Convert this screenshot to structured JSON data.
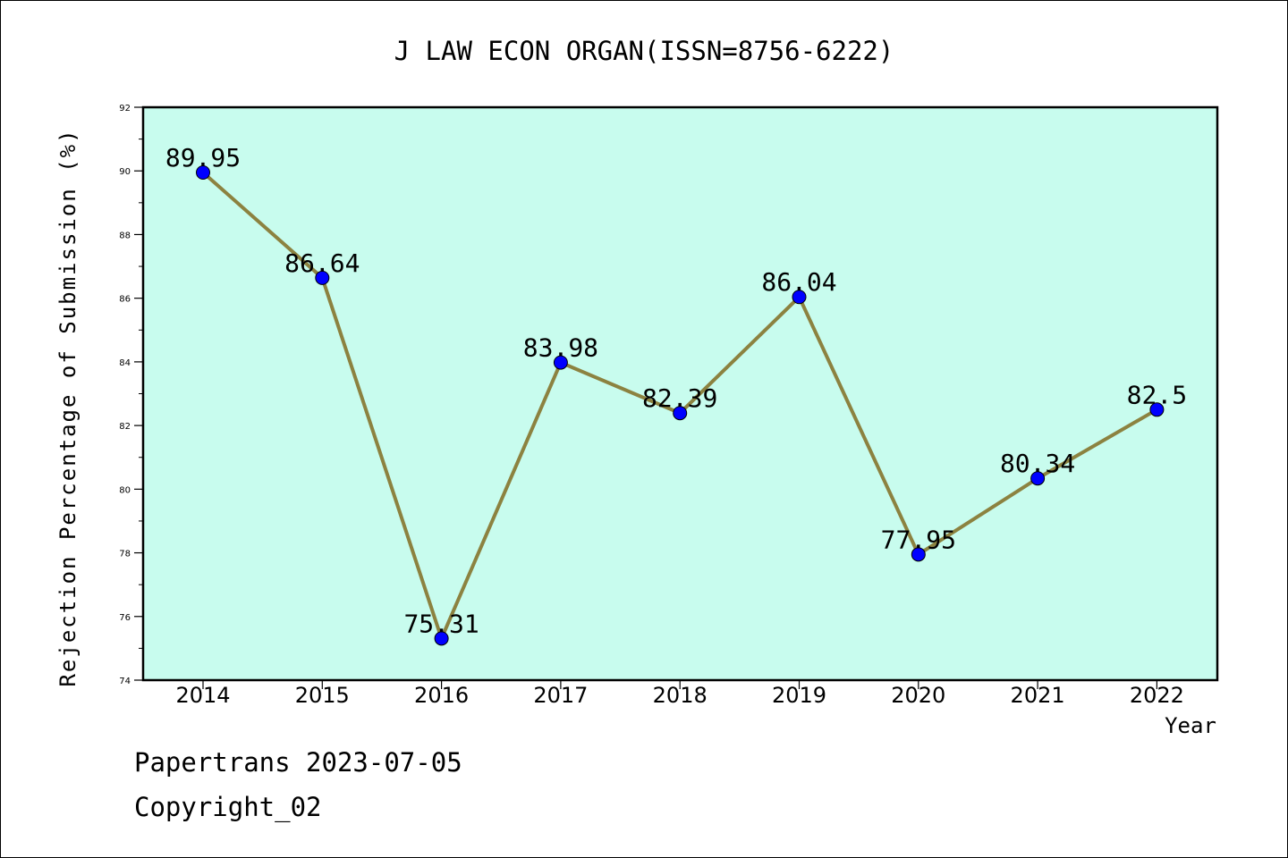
{
  "chart_data": {
    "type": "line",
    "title": "J LAW ECON ORGAN(ISSN=8756-6222)",
    "xlabel": "Year",
    "ylabel": "Rejection Percentage of Submission (%)",
    "categories": [
      "2014",
      "2015",
      "2016",
      "2017",
      "2018",
      "2019",
      "2020",
      "2021",
      "2022"
    ],
    "values": [
      89.95,
      86.64,
      75.31,
      83.98,
      82.39,
      86.04,
      77.95,
      80.34,
      82.5
    ],
    "data_labels": [
      "89.95",
      "86.64",
      "75.31",
      "83.98",
      "82.39",
      "86.04",
      "77.95",
      "80.34",
      "82.5"
    ],
    "ylim": [
      74,
      92
    ],
    "yticks": [
      74,
      76,
      78,
      80,
      82,
      84,
      86,
      88,
      90,
      92
    ],
    "ytick_labels": [
      "74",
      "76",
      "78",
      "80",
      "82",
      "84",
      "86",
      "88",
      "90",
      "92"
    ],
    "grid": false,
    "legend": "none",
    "colors": {
      "plot_background": "#c8fcee",
      "line": "#8c8240",
      "marker": "#0000ff"
    }
  },
  "footer": {
    "line1": "Papertrans 2023-07-05",
    "line2": "Copyright_02"
  }
}
